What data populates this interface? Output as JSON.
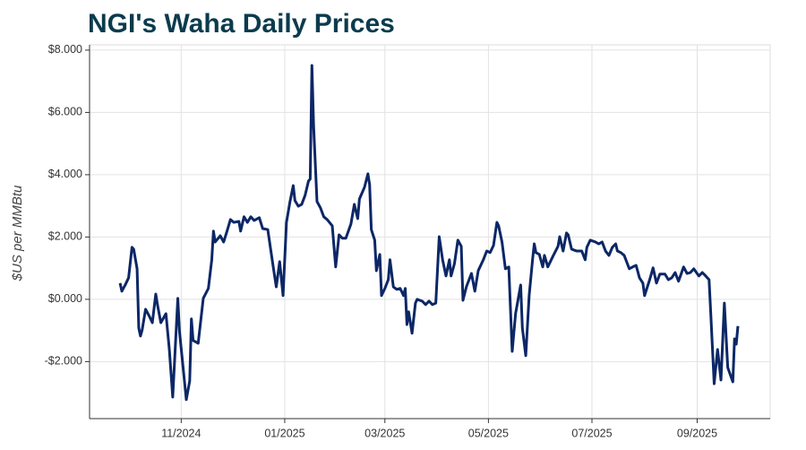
{
  "chart_data": {
    "type": "line",
    "title": "NGI's Waha Daily Prices",
    "y_label": "$US per MMBtu",
    "x": [
      "2024-09-26",
      "2024-09-27",
      "2024-09-29",
      "2024-10-01",
      "2024-10-03",
      "2024-10-04",
      "2024-10-06",
      "2024-10-07",
      "2024-10-08",
      "2024-10-09",
      "2024-10-11",
      "2024-10-13",
      "2024-10-15",
      "2024-10-17",
      "2024-10-18",
      "2024-10-20",
      "2024-10-23",
      "2024-10-25",
      "2024-10-27",
      "2024-10-30",
      "2024-10-31",
      "2024-11-04",
      "2024-11-06",
      "2024-11-07",
      "2024-11-08",
      "2024-11-09",
      "2024-11-11",
      "2024-11-14",
      "2024-11-17",
      "2024-11-19",
      "2024-11-20",
      "2024-11-21",
      "2024-11-24",
      "2024-11-26",
      "2024-11-28",
      "2024-11-30",
      "2024-12-02",
      "2024-12-05",
      "2024-12-06",
      "2024-12-08",
      "2024-12-10",
      "2024-12-12",
      "2024-12-14",
      "2024-12-17",
      "2024-12-19",
      "2024-12-22",
      "2024-12-25",
      "2024-12-27",
      "2024-12-29",
      "2024-12-31",
      "2025-01-02",
      "2025-01-04",
      "2025-01-06",
      "2025-01-07",
      "2025-01-09",
      "2025-01-11",
      "2025-01-13",
      "2025-01-15",
      "2025-01-16",
      "2025-01-17",
      "2025-01-18",
      "2025-01-20",
      "2025-01-22",
      "2025-01-24",
      "2025-01-26",
      "2025-01-29",
      "2025-01-31",
      "2025-02-02",
      "2025-02-04",
      "2025-02-06",
      "2025-02-09",
      "2025-02-11",
      "2025-02-13",
      "2025-02-14",
      "2025-02-17",
      "2025-02-19",
      "2025-02-20",
      "2025-02-21",
      "2025-02-23",
      "2025-02-24",
      "2025-02-26",
      "2025-02-27",
      "2025-03-01",
      "2025-03-03",
      "2025-03-04",
      "2025-03-06",
      "2025-03-08",
      "2025-03-10",
      "2025-03-12",
      "2025-03-13",
      "2025-03-14",
      "2025-03-15",
      "2025-03-17",
      "2025-03-19",
      "2025-03-20",
      "2025-03-23",
      "2025-03-25",
      "2025-03-27",
      "2025-03-29",
      "2025-03-31",
      "2025-04-02",
      "2025-04-04",
      "2025-04-06",
      "2025-04-08",
      "2025-04-09",
      "2025-04-11",
      "2025-04-13",
      "2025-04-15",
      "2025-04-16",
      "2025-04-18",
      "2025-04-21",
      "2025-04-23",
      "2025-04-25",
      "2025-04-28",
      "2025-04-30",
      "2025-05-02",
      "2025-05-04",
      "2025-05-06",
      "2025-05-07",
      "2025-05-09",
      "2025-05-11",
      "2025-05-13",
      "2025-05-15",
      "2025-05-17",
      "2025-05-20",
      "2025-05-21",
      "2025-05-23",
      "2025-05-25",
      "2025-05-27",
      "2025-05-28",
      "2025-05-29",
      "2025-05-31",
      "2025-06-02",
      "2025-06-03",
      "2025-06-05",
      "2025-06-08",
      "2025-06-11",
      "2025-06-12",
      "2025-06-14",
      "2025-06-16",
      "2025-06-17",
      "2025-06-19",
      "2025-06-22",
      "2025-06-25",
      "2025-06-27",
      "2025-06-28",
      "2025-06-30",
      "2025-07-03",
      "2025-07-05",
      "2025-07-07",
      "2025-07-09",
      "2025-07-11",
      "2025-07-13",
      "2025-07-15",
      "2025-07-16",
      "2025-07-18",
      "2025-07-20",
      "2025-07-23",
      "2025-07-25",
      "2025-07-27",
      "2025-07-29",
      "2025-07-31",
      "2025-08-01",
      "2025-08-04",
      "2025-08-06",
      "2025-08-08",
      "2025-08-10",
      "2025-08-13",
      "2025-08-15",
      "2025-08-17",
      "2025-08-19",
      "2025-08-21",
      "2025-08-24",
      "2025-08-26",
      "2025-08-28",
      "2025-08-30",
      "2025-09-02",
      "2025-09-04",
      "2025-09-06",
      "2025-09-08",
      "2025-09-09",
      "2025-09-11",
      "2025-09-13",
      "2025-09-15",
      "2025-09-17",
      "2025-09-19",
      "2025-09-22",
      "2025-09-23",
      "2025-09-24",
      "2025-09-25"
    ],
    "series": [
      {
        "color": "#0c2766",
        "values": [
          0.52,
          0.26,
          0.46,
          0.69,
          1.67,
          1.61,
          0.98,
          -0.92,
          -1.18,
          -0.98,
          -0.32,
          -0.52,
          -0.75,
          0.17,
          -0.17,
          -0.75,
          -0.46,
          -1.61,
          -3.14,
          0.03,
          -1.04,
          -3.22,
          -2.62,
          -0.63,
          -1.32,
          -1.35,
          -1.41,
          0.03,
          0.35,
          1.27,
          2.19,
          1.84,
          2.04,
          1.84,
          2.19,
          2.56,
          2.47,
          2.5,
          2.19,
          2.65,
          2.47,
          2.65,
          2.53,
          2.62,
          2.27,
          2.24,
          1.12,
          0.4,
          1.21,
          0.12,
          2.47,
          3.11,
          3.65,
          3.17,
          2.99,
          3.05,
          3.34,
          3.8,
          3.86,
          7.51,
          5.58,
          3.14,
          2.94,
          2.65,
          2.56,
          2.36,
          1.04,
          2.07,
          1.96,
          1.96,
          2.42,
          3.05,
          2.59,
          3.22,
          3.6,
          4.03,
          3.68,
          2.24,
          1.9,
          0.92,
          1.44,
          0.12,
          0.35,
          0.63,
          1.27,
          0.4,
          0.32,
          0.35,
          0.12,
          0.35,
          -0.81,
          -0.4,
          -1.09,
          -0.12,
          0.0,
          -0.06,
          -0.17,
          -0.06,
          -0.17,
          -0.12,
          2.01,
          1.27,
          0.75,
          1.27,
          0.75,
          1.15,
          1.9,
          1.7,
          -0.03,
          0.4,
          0.83,
          0.26,
          0.92,
          1.27,
          1.55,
          1.5,
          1.73,
          2.47,
          2.36,
          1.84,
          0.98,
          1.04,
          -1.67,
          -0.46,
          0.46,
          -0.92,
          -1.81,
          0.12,
          1.27,
          1.78,
          1.5,
          1.44,
          1.04,
          1.41,
          1.04,
          1.38,
          1.7,
          2.01,
          1.55,
          2.13,
          2.07,
          1.61,
          1.55,
          1.55,
          1.27,
          1.67,
          1.9,
          1.84,
          1.78,
          1.84,
          1.55,
          1.41,
          1.67,
          1.78,
          1.55,
          1.5,
          1.41,
          0.98,
          1.04,
          1.09,
          0.69,
          0.52,
          0.12,
          0.63,
          1.01,
          0.52,
          0.81,
          0.81,
          0.63,
          0.69,
          0.86,
          0.58,
          1.04,
          0.83,
          0.86,
          0.98,
          0.75,
          0.86,
          0.75,
          0.63,
          -0.46,
          -2.71,
          -1.61,
          -2.59,
          -0.12,
          -2.19,
          -2.65,
          -1.27,
          -1.44,
          -0.86
        ]
      }
    ],
    "xlim": [
      "2024-09-08",
      "2025-10-14"
    ],
    "xticks": [
      {
        "value": "2024-11-01",
        "label": "11/2024"
      },
      {
        "value": "2025-01-01",
        "label": "01/2025"
      },
      {
        "value": "2025-03-01",
        "label": "03/2025"
      },
      {
        "value": "2025-05-01",
        "label": "05/2025"
      },
      {
        "value": "2025-07-01",
        "label": "07/2025"
      },
      {
        "value": "2025-09-01",
        "label": "09/2025"
      }
    ],
    "ylim": [
      -3.83,
      8.17
    ],
    "yticks": [
      {
        "value": -2,
        "label": "-$2.000"
      },
      {
        "value": 0,
        "label": "$0.000"
      },
      {
        "value": 2,
        "label": "$2.000"
      },
      {
        "value": 4,
        "label": "$4.000"
      },
      {
        "value": 6,
        "label": "$6.000"
      },
      {
        "value": 8,
        "label": "$8.000"
      }
    ],
    "grid": true
  }
}
